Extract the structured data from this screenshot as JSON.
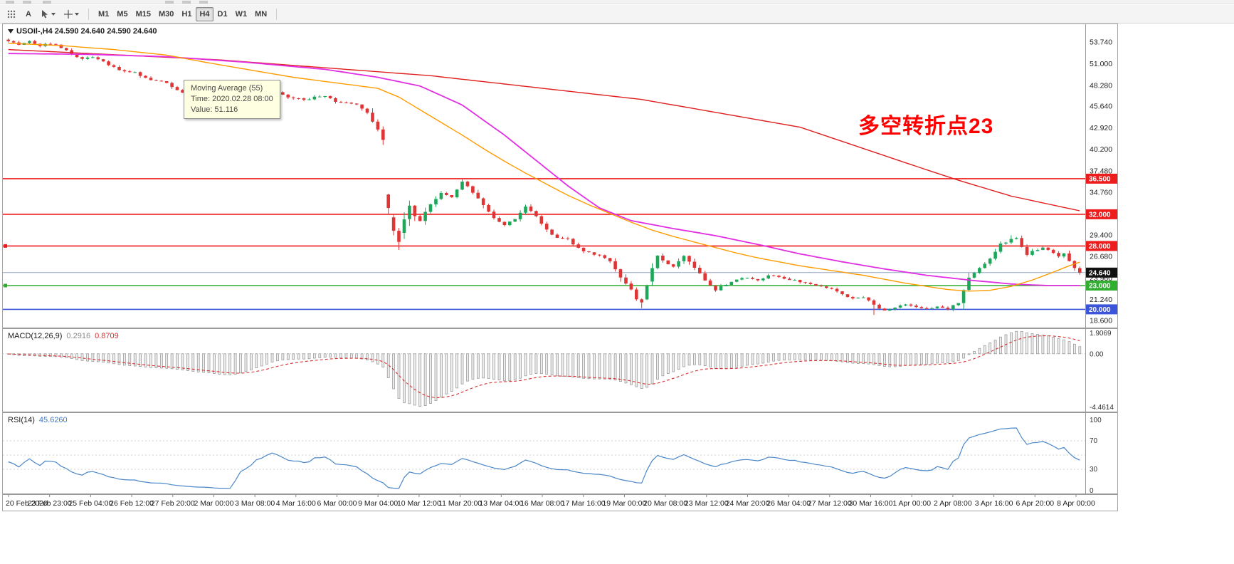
{
  "toolbar": {
    "icons": [
      {
        "name": "menu-grid-icon"
      },
      {
        "name": "font-tool-icon",
        "label": "A"
      },
      {
        "name": "cursor-tool-icon"
      },
      {
        "name": "crosshair-tool-icon"
      }
    ],
    "timeframes": [
      "M1",
      "M5",
      "M15",
      "M30",
      "H1",
      "H4",
      "D1",
      "W1",
      "MN"
    ],
    "active_timeframe": "H4"
  },
  "chart": {
    "title": "USOil-,H4 24.590 24.640 24.590 24.640",
    "symbol": "USOil-",
    "period": "H4",
    "current_price": 24.64,
    "current_price_label": "24.640",
    "annotation": {
      "text": "多空转折点23",
      "color": "#ff0000"
    },
    "tooltip": {
      "lines": [
        "Moving Average (55)",
        "Time: 2020.02.28 08:00",
        "Value: 51.116"
      ]
    }
  },
  "indicators": {
    "macd": {
      "name": "MACD(12,26,9)",
      "values": [
        "0.2916",
        "0.8709"
      ],
      "scale_top": "1.9069",
      "scale_zero": "0.00",
      "scale_bottom": "-4.4614"
    },
    "rsi": {
      "name": "RSI(14)",
      "value": "45.6260",
      "scale_labels": [
        "100",
        "70",
        "30",
        "0"
      ],
      "levels": [
        70,
        50,
        30
      ]
    }
  },
  "chart_data": {
    "type": "candlestick",
    "symbol": "USOil-",
    "timeframe": "H4",
    "candle_count": 204,
    "y_axis": {
      "range": [
        17.7,
        56.0
      ],
      "labels": [
        "53.740",
        "51.000",
        "48.280",
        "45.640",
        "42.920",
        "40.200",
        "37.480",
        "34.760",
        "32.040",
        "29.400",
        "26.680",
        "23.960",
        "21.240",
        "18.600"
      ]
    },
    "x_labels": [
      "20 Feb 2020",
      "23 Feb 23:00",
      "25 Feb 04:00",
      "26 Feb 12:00",
      "27 Feb 20:00",
      "2 Mar 00:00",
      "3 Mar 08:00",
      "4 Mar 16:00",
      "6 Mar 00:00",
      "9 Mar 04:00",
      "10 Mar 12:00",
      "11 Mar 20:00",
      "13 Mar 04:00",
      "16 Mar 08:00",
      "17 Mar 16:00",
      "19 Mar 00:00",
      "20 Mar 08:00",
      "23 Mar 12:00",
      "24 Mar 20:00",
      "26 Mar 04:00",
      "27 Mar 12:00",
      "30 Mar 16:00",
      "1 Apr 00:00",
      "2 Apr 08:00",
      "3 Apr 16:00",
      "6 Apr 20:00",
      "8 Apr 00:00"
    ],
    "price_anchors": [
      [
        0,
        53.9
      ],
      [
        2,
        53.5
      ],
      [
        4,
        53.8
      ],
      [
        6,
        53.3
      ],
      [
        8,
        53.6
      ],
      [
        10,
        53.1
      ],
      [
        12,
        52.2
      ],
      [
        14,
        51.7
      ],
      [
        16,
        51.9
      ],
      [
        18,
        51.3
      ],
      [
        20,
        50.5
      ],
      [
        22,
        50.1
      ],
      [
        24,
        49.9
      ],
      [
        26,
        49.2
      ],
      [
        28,
        48.9
      ],
      [
        30,
        48.6
      ],
      [
        32,
        47.6
      ],
      [
        34,
        47.0
      ],
      [
        36,
        46.4
      ],
      [
        38,
        45.9
      ],
      [
        40,
        44.9
      ],
      [
        42,
        44.8
      ],
      [
        44,
        45.7
      ],
      [
        46,
        46.4
      ],
      [
        48,
        47.1
      ],
      [
        50,
        47.7
      ],
      [
        52,
        47.0
      ],
      [
        54,
        46.7
      ],
      [
        56,
        46.4
      ],
      [
        58,
        46.8
      ],
      [
        60,
        47.0
      ],
      [
        62,
        46.2
      ],
      [
        64,
        46.0
      ],
      [
        66,
        45.8
      ],
      [
        68,
        44.9
      ],
      [
        70,
        42.7
      ],
      [
        71,
        41.4
      ],
      [
        72,
        32.8
      ],
      [
        73,
        30.0
      ],
      [
        74,
        28.6
      ],
      [
        75,
        31.4
      ],
      [
        76,
        33.0
      ],
      [
        77,
        31.7
      ],
      [
        78,
        31.2
      ],
      [
        80,
        33.3
      ],
      [
        82,
        34.7
      ],
      [
        84,
        34.1
      ],
      [
        86,
        36.1
      ],
      [
        88,
        34.8
      ],
      [
        90,
        33.2
      ],
      [
        92,
        31.6
      ],
      [
        94,
        30.7
      ],
      [
        96,
        31.4
      ],
      [
        98,
        33.0
      ],
      [
        100,
        31.8
      ],
      [
        102,
        30.0
      ],
      [
        104,
        29.0
      ],
      [
        106,
        28.8
      ],
      [
        108,
        27.7
      ],
      [
        110,
        27.1
      ],
      [
        112,
        26.9
      ],
      [
        114,
        26.1
      ],
      [
        116,
        24.0
      ],
      [
        118,
        22.5
      ],
      [
        119,
        21.3
      ],
      [
        120,
        20.9
      ],
      [
        121,
        23.0
      ],
      [
        122,
        25.1
      ],
      [
        123,
        26.8
      ],
      [
        124,
        26.1
      ],
      [
        126,
        25.3
      ],
      [
        128,
        26.7
      ],
      [
        130,
        25.3
      ],
      [
        132,
        23.6
      ],
      [
        134,
        22.5
      ],
      [
        136,
        23.2
      ],
      [
        138,
        23.8
      ],
      [
        140,
        24.0
      ],
      [
        142,
        23.6
      ],
      [
        144,
        24.2
      ],
      [
        146,
        24.1
      ],
      [
        148,
        23.8
      ],
      [
        150,
        23.5
      ],
      [
        152,
        23.2
      ],
      [
        154,
        22.9
      ],
      [
        156,
        22.6
      ],
      [
        158,
        22.0
      ],
      [
        160,
        21.3
      ],
      [
        162,
        21.6
      ],
      [
        164,
        20.5
      ],
      [
        166,
        19.9
      ],
      [
        168,
        20.2
      ],
      [
        170,
        20.7
      ],
      [
        172,
        20.3
      ],
      [
        174,
        20.1
      ],
      [
        176,
        20.4
      ],
      [
        178,
        20.1
      ],
      [
        180,
        20.9
      ],
      [
        181,
        22.4
      ],
      [
        182,
        24.1
      ],
      [
        184,
        25.2
      ],
      [
        186,
        26.4
      ],
      [
        188,
        28.2
      ],
      [
        190,
        28.8
      ],
      [
        191,
        29.0
      ],
      [
        192,
        27.9
      ],
      [
        193,
        26.9
      ],
      [
        194,
        27.4
      ],
      [
        196,
        27.8
      ],
      [
        198,
        27.1
      ],
      [
        199,
        26.7
      ],
      [
        200,
        27.0
      ],
      [
        201,
        26.2
      ],
      [
        202,
        25.3
      ],
      [
        203,
        24.64
      ]
    ],
    "wick_overrides": [
      [
        74,
        "l",
        27.5
      ],
      [
        86,
        "h",
        36.45
      ],
      [
        120,
        "l",
        20.15
      ],
      [
        190,
        "h",
        29.35
      ],
      [
        50,
        "h",
        48.3
      ],
      [
        164,
        "l",
        19.3
      ]
    ],
    "ma_lines": [
      {
        "name": "ma-slow-red",
        "color": "#e02020",
        "width": 1.4,
        "points": [
          [
            0,
            52.8
          ],
          [
            40,
            51.5
          ],
          [
            80,
            49.5
          ],
          [
            120,
            46.5
          ],
          [
            150,
            43.0
          ],
          [
            170,
            38.5
          ],
          [
            180,
            36.3
          ],
          [
            190,
            34.3
          ],
          [
            204,
            32.3
          ]
        ]
      },
      {
        "name": "ma-mid-magenta",
        "color": "#e22ee2",
        "width": 1.8,
        "points": [
          [
            0,
            52.3
          ],
          [
            15,
            52.2
          ],
          [
            30,
            51.9
          ],
          [
            45,
            51.2
          ],
          [
            60,
            50.3
          ],
          [
            70,
            49.3
          ],
          [
            78,
            48.2
          ],
          [
            86,
            45.8
          ],
          [
            94,
            42.0
          ],
          [
            100,
            38.8
          ],
          [
            106,
            35.6
          ],
          [
            112,
            32.8
          ],
          [
            118,
            31.2
          ],
          [
            126,
            30.2
          ],
          [
            134,
            29.3
          ],
          [
            142,
            28.2
          ],
          [
            150,
            27.0
          ],
          [
            158,
            26.0
          ],
          [
            166,
            25.1
          ],
          [
            174,
            24.3
          ],
          [
            182,
            23.7
          ],
          [
            190,
            23.2
          ],
          [
            197,
            23.0
          ],
          [
            204,
            23.0
          ]
        ]
      },
      {
        "name": "ma-55-orange",
        "color": "#ff9c00",
        "width": 1.4,
        "points": [
          [
            0,
            53.6
          ],
          [
            10,
            53.3
          ],
          [
            20,
            52.8
          ],
          [
            30,
            52.1
          ],
          [
            38,
            51.116
          ],
          [
            46,
            50.2
          ],
          [
            54,
            49.3
          ],
          [
            62,
            48.6
          ],
          [
            70,
            47.9
          ],
          [
            74,
            46.8
          ],
          [
            78,
            45.2
          ],
          [
            82,
            43.6
          ],
          [
            86,
            42.0
          ],
          [
            90,
            40.3
          ],
          [
            94,
            38.7
          ],
          [
            98,
            37.2
          ],
          [
            102,
            35.8
          ],
          [
            106,
            34.4
          ],
          [
            110,
            33.2
          ],
          [
            114,
            32.1
          ],
          [
            118,
            31.0
          ],
          [
            122,
            30.0
          ],
          [
            126,
            29.2
          ],
          [
            130,
            28.5
          ],
          [
            134,
            27.8
          ],
          [
            138,
            27.1
          ],
          [
            142,
            26.5
          ],
          [
            146,
            26.0
          ],
          [
            150,
            25.5
          ],
          [
            154,
            25.1
          ],
          [
            158,
            24.7
          ],
          [
            162,
            24.3
          ],
          [
            166,
            23.8
          ],
          [
            170,
            23.3
          ],
          [
            174,
            22.9
          ],
          [
            178,
            22.5
          ],
          [
            182,
            22.3
          ],
          [
            186,
            22.4
          ],
          [
            190,
            22.9
          ],
          [
            194,
            23.7
          ],
          [
            198,
            24.7
          ],
          [
            201,
            25.5
          ],
          [
            204,
            26.2
          ]
        ]
      }
    ],
    "hlines": [
      {
        "value": 36.5,
        "label": "36.500",
        "color": "#ee1c1c",
        "anchor": false
      },
      {
        "value": 32.0,
        "label": "32.000",
        "color": "#ee1c1c",
        "anchor": false
      },
      {
        "value": 28.0,
        "label": "28.000",
        "color": "#ee1c1c",
        "anchor": true
      },
      {
        "value": 23.0,
        "label": "23.000",
        "color": "#2fae2f",
        "anchor": true
      },
      {
        "value": 20.0,
        "label": "20.000",
        "color": "#3a55d9",
        "anchor": false
      }
    ],
    "up_color": "#1ea75a",
    "down_color": "#e03535"
  }
}
